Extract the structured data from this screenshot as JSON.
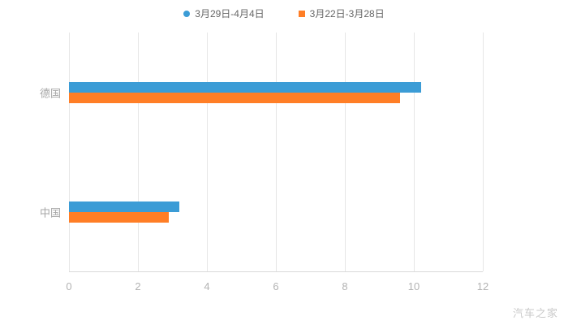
{
  "watermark": "汽车之家",
  "chart_data": {
    "type": "bar",
    "orientation": "horizontal",
    "title": "",
    "xlabel": "",
    "ylabel": "",
    "categories": [
      "德国",
      "中国"
    ],
    "series": [
      {
        "name": "3月29日-4月4日",
        "marker": "circle",
        "color": "#3B9CD6",
        "values": [
          10.2,
          3.2
        ]
      },
      {
        "name": "3月22日-3月28日",
        "marker": "square",
        "color": "#FF7E26",
        "values": [
          9.6,
          2.9
        ]
      }
    ],
    "xlim": [
      0,
      12
    ],
    "xticks": [
      0,
      2,
      4,
      6,
      8,
      10,
      12
    ],
    "grid": true,
    "legend_position": "top"
  }
}
